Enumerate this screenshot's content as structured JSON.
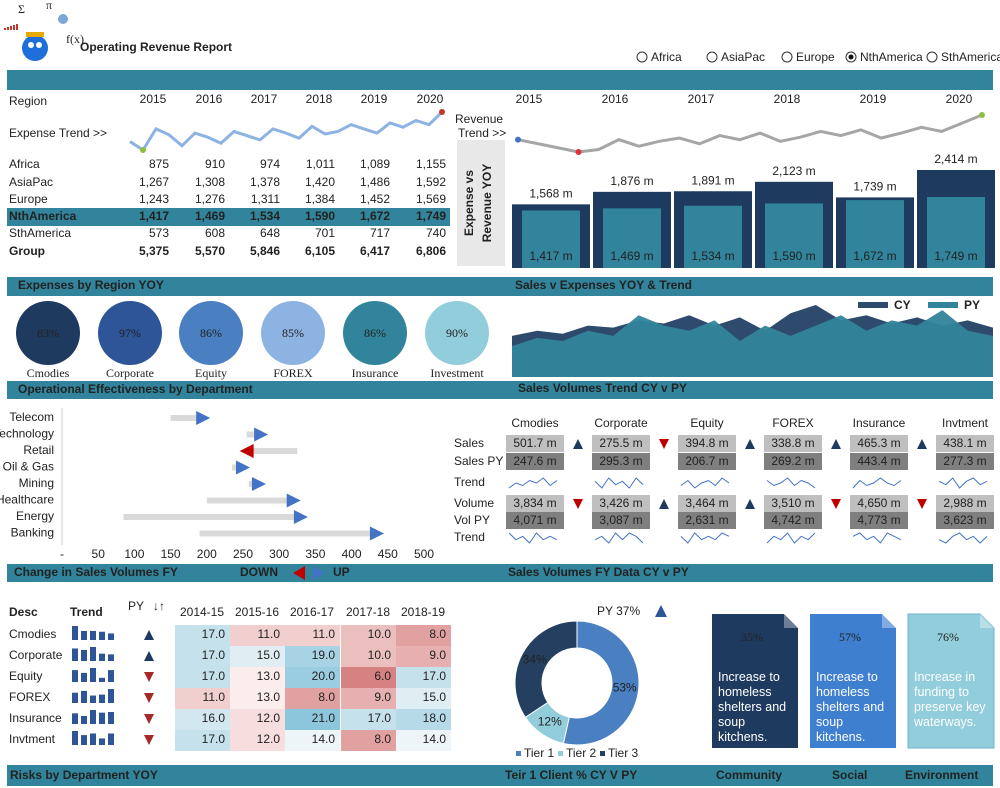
{
  "header": {
    "title": "Operating Revenue Report",
    "symbols": [
      "Σ",
      "π",
      "f(x)"
    ]
  },
  "region_selector": {
    "options": [
      "Africa",
      "AsiaPac",
      "Europe",
      "NthAmerica",
      "SthAmerica"
    ],
    "selected": 3
  },
  "region_table": {
    "header": "Region",
    "years": [
      "2015",
      "2016",
      "2017",
      "2018",
      "2019",
      "2020"
    ],
    "trend_label": "Expense Trend >>",
    "trend": [
      40,
      30,
      55,
      48,
      35,
      50,
      45,
      38,
      52,
      47,
      42,
      55,
      50,
      44,
      58,
      49,
      52,
      60,
      55,
      50,
      62,
      57,
      65,
      60,
      75
    ],
    "rows": [
      {
        "name": "Africa",
        "cells": [
          "875",
          "910",
          "974",
          "1,011",
          "1,089",
          "1,155"
        ]
      },
      {
        "name": "AsiaPac",
        "cells": [
          "1,267",
          "1,308",
          "1,378",
          "1,420",
          "1,486",
          "1,592"
        ]
      },
      {
        "name": "Europe",
        "cells": [
          "1,243",
          "1,276",
          "1,311",
          "1,384",
          "1,452",
          "1,569"
        ]
      },
      {
        "name": "NthAmerica",
        "cells": [
          "1,417",
          "1,469",
          "1,534",
          "1,590",
          "1,672",
          "1,749"
        ]
      },
      {
        "name": "SthAmerica",
        "cells": [
          "573",
          "608",
          "648",
          "701",
          "717",
          "740"
        ]
      },
      {
        "name": "Group",
        "cells": [
          "5,375",
          "5,570",
          "5,846",
          "6,105",
          "6,417",
          "6,806"
        ]
      }
    ]
  },
  "revenue_chart": {
    "years": [
      "2015",
      "2016",
      "2017",
      "2018",
      "2019",
      "2020"
    ],
    "trend_label_lines": [
      "Revenue",
      "Trend >>"
    ],
    "axis_label_lines": [
      "Expense vs",
      "Revenue YOY"
    ],
    "trend": [
      60,
      55,
      50,
      45,
      48,
      60,
      52,
      58,
      62,
      55,
      65,
      60,
      68,
      58,
      63,
      70,
      65,
      72,
      62,
      68,
      75,
      70,
      80,
      90
    ],
    "revenue": [
      1568,
      1876,
      1891,
      2123,
      1739,
      2414
    ],
    "revenue_labels": [
      "1,568 m",
      "1,876 m",
      "1,891 m",
      "2,123 m",
      "1,739 m",
      "2,414 m"
    ],
    "expense": [
      1417,
      1469,
      1534,
      1590,
      1672,
      1749
    ],
    "expense_labels": [
      "1,417 m",
      "1,469 m",
      "1,534 m",
      "1,590 m",
      "1,672 m",
      "1,749 m"
    ],
    "revenue_color": "#1f3a5f",
    "expense_color": "#31849b"
  },
  "sections": {
    "expenses_region": "Expenses by Region YOY",
    "sales_expenses": "Sales v Expenses YOY & Trend",
    "operational": "Operational Effectiveness by Department",
    "sales_trend": "Sales Volumes Trend CY v PY",
    "change_volumes": "Change in Sales Volumes FY",
    "down": "DOWN",
    "up": "UP",
    "volumes_data": "Sales Volumes FY Data CY v PY",
    "risks": "Risks by Department YOY",
    "tier1": "Teir 1 Client % CY V PY",
    "community": "Community",
    "social": "Social",
    "environment": "Environment"
  },
  "expense_circles": [
    {
      "name": "Cmodies",
      "value": 83,
      "label": "83%",
      "color": "#1f3a5f"
    },
    {
      "name": "Corporate",
      "value": 97,
      "label": "97%",
      "color": "#2e5597"
    },
    {
      "name": "Equity",
      "value": 86,
      "label": "86%",
      "color": "#4a7fc1"
    },
    {
      "name": "FOREX",
      "value": 85,
      "label": "85%",
      "color": "#8db3e2"
    },
    {
      "name": "Insurance",
      "value": 86,
      "label": "86%",
      "color": "#31849b"
    },
    {
      "name": "Investment",
      "value": 90,
      "label": "90%",
      "color": "#92cddc"
    }
  ],
  "area_chart": {
    "series": [
      {
        "name": "CY",
        "color": "#2e4b6e",
        "values": [
          40,
          45,
          42,
          50,
          48,
          55,
          52,
          60,
          50,
          58,
          45,
          62,
          70,
          55,
          60,
          52,
          58,
          50,
          55,
          48
        ]
      },
      {
        "name": "PY",
        "color": "#31849b",
        "values": [
          30,
          38,
          35,
          45,
          40,
          60,
          50,
          45,
          55,
          35,
          50,
          40,
          50,
          60,
          45,
          55,
          50,
          65,
          45,
          40
        ]
      }
    ]
  },
  "department_chart": {
    "categories": [
      "Telecom",
      "Technology",
      "Retail",
      "Oil & Gas",
      "Mining",
      "Healthcare",
      "Energy",
      "Banking"
    ],
    "start": [
      150,
      255,
      325,
      235,
      258,
      200,
      85,
      190
    ],
    "end": [
      195,
      275,
      255,
      250,
      272,
      320,
      330,
      435
    ],
    "xlim": [
      0,
      500
    ],
    "xticks": [
      {
        "value": 0,
        "label": "-"
      },
      50,
      100,
      150,
      200,
      250,
      300,
      350,
      400,
      450,
      500
    ]
  },
  "sales_table": {
    "columns": [
      "Cmodies",
      "Corporate",
      "Equity",
      "FOREX",
      "Insurance",
      "Invtment"
    ],
    "rows": [
      {
        "label": "Sales",
        "kind": "cy",
        "values": [
          501.7,
          275.5,
          394.8,
          338.8,
          465.3,
          438.1
        ],
        "value_labels": [
          "501.7 m",
          "275.5 m",
          "394.8 m",
          "338.8 m",
          "465.3 m",
          "438.1 m"
        ]
      },
      {
        "label": "Sales PY",
        "kind": "py",
        "values": [
          247.6,
          295.3,
          206.7,
          269.2,
          443.4,
          277.3
        ],
        "value_labels": [
          "247.6 m",
          "295.3 m",
          "206.7 m",
          "269.2 m",
          "443.4 m",
          "277.3 m"
        ]
      },
      {
        "label": "Trend",
        "kind": "trend",
        "series": [
          [
            3,
            5,
            4,
            6,
            5,
            7,
            4,
            6
          ],
          [
            5,
            3,
            6,
            4,
            5,
            3,
            6,
            4
          ],
          [
            4,
            6,
            3,
            5,
            6,
            4,
            7,
            5
          ],
          [
            6,
            4,
            5,
            7,
            4,
            6,
            5,
            3
          ],
          [
            3,
            6,
            4,
            5,
            7,
            5,
            4,
            6
          ],
          [
            5,
            4,
            6,
            3,
            5,
            6,
            4,
            5
          ]
        ]
      },
      {
        "label": "Volume",
        "kind": "cy",
        "values": [
          3834,
          3426,
          3464,
          3510,
          4650,
          2988
        ],
        "value_labels": [
          "3,834 m",
          "3,426 m",
          "3,464 m",
          "3,510 m",
          "4,650 m",
          "2,988 m"
        ]
      },
      {
        "label": "Vol PY",
        "kind": "py",
        "values": [
          4071,
          3087,
          2631,
          4742,
          4773,
          3623
        ],
        "value_labels": [
          "4,071 m",
          "3,087 m",
          "2,631 m",
          "4,742 m",
          "4,773 m",
          "3,623 m"
        ]
      },
      {
        "label": "Trend",
        "kind": "trend",
        "series": [
          [
            6,
            4,
            5,
            3,
            6,
            4,
            5,
            4
          ],
          [
            4,
            5,
            3,
            6,
            4,
            6,
            5,
            3
          ],
          [
            5,
            3,
            6,
            4,
            5,
            4,
            6,
            5
          ],
          [
            3,
            5,
            4,
            6,
            3,
            5,
            4,
            6
          ],
          [
            5,
            6,
            4,
            5,
            3,
            6,
            5,
            4
          ],
          [
            4,
            3,
            5,
            6,
            4,
            5,
            3,
            5
          ]
        ]
      }
    ]
  },
  "volume_table": {
    "headers": {
      "desc": "Desc",
      "trend": "Trend",
      "py": "PY",
      "py_symbol": "↓↑"
    },
    "years": [
      "2014-15",
      "2015-16",
      "2016-17",
      "2017-18",
      "2018-19"
    ],
    "rows": [
      {
        "name": "Cmodies",
        "direction": "up",
        "values": [
          17,
          11,
          11,
          10,
          8
        ],
        "value_labels": [
          "17.0",
          "11.0",
          "11.0",
          "10.0",
          "8.0"
        ]
      },
      {
        "name": "Corporate",
        "direction": "up",
        "values": [
          17,
          15,
          19,
          10,
          9
        ],
        "value_labels": [
          "17.0",
          "15.0",
          "19.0",
          "10.0",
          "9.0"
        ]
      },
      {
        "name": "Equity",
        "direction": "down",
        "values": [
          17,
          13,
          20,
          6,
          17
        ],
        "value_labels": [
          "17.0",
          "13.0",
          "20.0",
          "6.0",
          "17.0"
        ]
      },
      {
        "name": "FOREX",
        "direction": "down",
        "values": [
          11,
          13,
          8,
          9,
          15
        ],
        "value_labels": [
          "11.0",
          "13.0",
          "8.0",
          "9.0",
          "15.0"
        ]
      },
      {
        "name": "Insurance",
        "direction": "down",
        "values": [
          16,
          12,
          21,
          17,
          18
        ],
        "value_labels": [
          "16.0",
          "12.0",
          "21.0",
          "17.0",
          "18.0"
        ]
      },
      {
        "name": "Invtment",
        "direction": "down",
        "values": [
          17,
          12,
          14,
          8,
          14
        ],
        "value_labels": [
          "17.0",
          "12.0",
          "14.0",
          "8.0",
          "14.0"
        ]
      }
    ]
  },
  "donut": {
    "type": "pie",
    "title": "PY 37%",
    "categories": [
      "Tier 1",
      "Tier 2",
      "Tier 3"
    ],
    "values": [
      53,
      12,
      34
    ],
    "value_labels": [
      "53%",
      "12%",
      "34%"
    ],
    "colors": [
      "#4a7fc1",
      "#92cddc",
      "#243f60"
    ]
  },
  "cards": [
    {
      "value": 35,
      "label": "35%",
      "text": "Increase to homeless shelters and soup kitchens.",
      "color": "#1f3a5f"
    },
    {
      "value": 57,
      "label": "57%",
      "text": "Increase to homeless shelters and soup kitchens.",
      "color": "#3f7fd0"
    },
    {
      "value": 76,
      "label": "76%",
      "text": "Increase in funding to preserve key waterways.",
      "color": "#92cddc"
    }
  ]
}
